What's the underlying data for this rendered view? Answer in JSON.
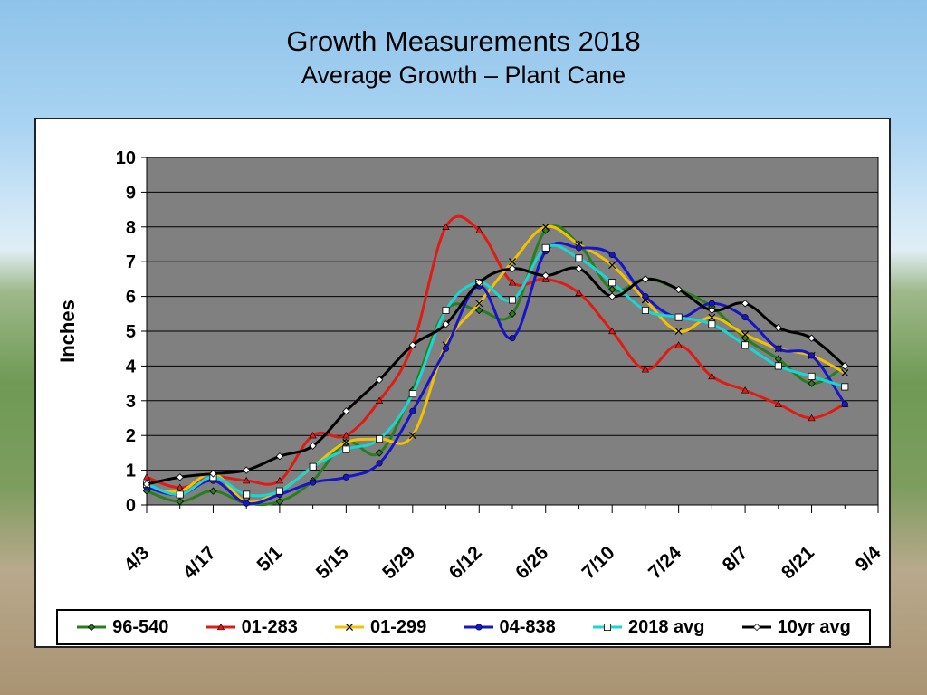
{
  "chart_data": {
    "type": "line",
    "title": "Growth Measurements 2018",
    "subtitle": "Average Growth – Plant Cane",
    "ylabel": "Inches",
    "xlabel": "",
    "ylim": [
      0,
      10
    ],
    "yticks": [
      "0",
      "1",
      "2",
      "3",
      "4",
      "5",
      "6",
      "7",
      "8",
      "9",
      "10"
    ],
    "xtick_labels": [
      "4/3",
      "4/17",
      "5/1",
      "5/15",
      "5/29",
      "6/12",
      "6/26",
      "7/10",
      "7/24",
      "8/7",
      "8/21",
      "9/4"
    ],
    "x": [
      "4/3",
      "4/10",
      "4/17",
      "4/24",
      "5/1",
      "5/8",
      "5/15",
      "5/22",
      "5/29",
      "6/5",
      "6/12",
      "6/19",
      "6/26",
      "7/3",
      "7/10",
      "7/17",
      "7/24",
      "7/31",
      "8/7",
      "8/14",
      "8/21",
      "8/28",
      "9/4"
    ],
    "grid": true,
    "legend_position": "bottom",
    "series": [
      {
        "name": "96-540",
        "color": "#2a7d1f",
        "marker": "diamond",
        "values": [
          0.4,
          0.1,
          0.4,
          0.05,
          0.1,
          0.7,
          1.8,
          1.5,
          3.3,
          5.6,
          5.6,
          5.5,
          7.9,
          7.5,
          6.2,
          6.5,
          6.2,
          5.7,
          4.8,
          4.2,
          3.5,
          4.0,
          null
        ]
      },
      {
        "name": "01-283",
        "color": "#e01b14",
        "marker": "triangle",
        "values": [
          0.8,
          0.5,
          0.8,
          0.7,
          0.7,
          2.0,
          2.0,
          3.0,
          4.6,
          8.0,
          7.9,
          6.4,
          6.5,
          6.1,
          5.0,
          3.9,
          4.6,
          3.7,
          3.3,
          2.9,
          2.5,
          2.9,
          null
        ]
      },
      {
        "name": "01-299",
        "color": "#f2c200",
        "marker": "x",
        "values": [
          0.5,
          0.4,
          0.9,
          0.1,
          0.4,
          1.1,
          1.8,
          1.9,
          2.0,
          4.6,
          5.8,
          7.0,
          8.0,
          7.5,
          6.9,
          5.9,
          5.0,
          5.4,
          4.9,
          4.5,
          4.3,
          3.8,
          null
        ]
      },
      {
        "name": "04-838",
        "color": "#1616c8",
        "marker": "circle",
        "values": [
          0.5,
          0.3,
          0.7,
          0.05,
          0.3,
          0.65,
          0.8,
          1.2,
          2.7,
          4.5,
          6.3,
          4.8,
          7.3,
          7.4,
          7.2,
          6.0,
          5.4,
          5.8,
          5.4,
          4.5,
          4.3,
          2.9,
          null
        ]
      },
      {
        "name": "2018 avg",
        "color": "#19d6d6",
        "marker": "square",
        "values": [
          0.6,
          0.3,
          0.8,
          0.3,
          0.4,
          1.1,
          1.6,
          1.9,
          3.2,
          5.6,
          6.4,
          5.9,
          7.4,
          7.1,
          6.4,
          5.6,
          5.4,
          5.2,
          4.6,
          4.0,
          3.7,
          3.4,
          null
        ]
      },
      {
        "name": "10yr avg",
        "color": "#000000",
        "marker": "diamond-open",
        "values": [
          0.6,
          0.8,
          0.9,
          1.0,
          1.4,
          1.7,
          2.7,
          3.6,
          4.6,
          5.2,
          6.4,
          6.8,
          6.6,
          6.8,
          6.0,
          6.5,
          6.2,
          5.6,
          5.8,
          5.1,
          4.8,
          4.0,
          null
        ]
      }
    ]
  }
}
